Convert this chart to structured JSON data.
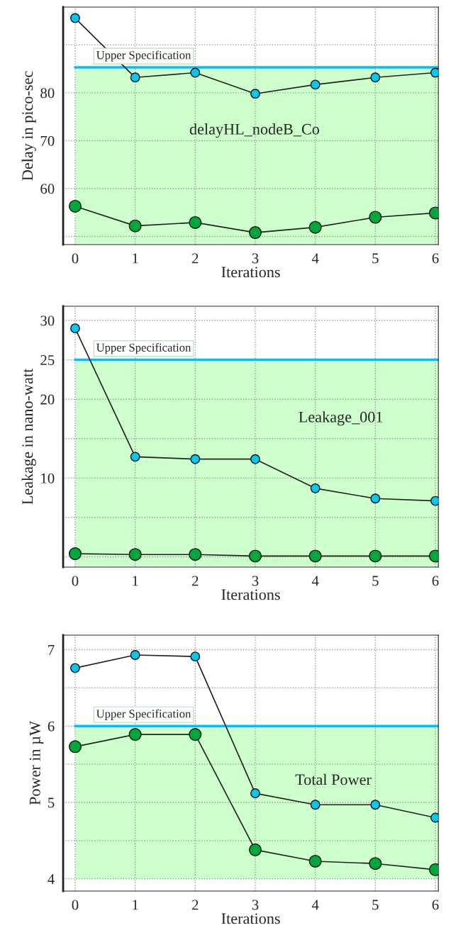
{
  "chart_data": [
    {
      "type": "line",
      "xlabel": "Iterations",
      "ylabel": "Delay in pico-sec",
      "annotations": [
        "delayHL_nodeB_Co"
      ],
      "x": [
        0,
        1,
        2,
        3,
        4,
        5,
        6
      ],
      "xlim": [
        -0.2,
        6.05
      ],
      "xticks": [
        0,
        1,
        2,
        3,
        4,
        5,
        6
      ],
      "ylim": [
        48.3,
        97.9
      ],
      "yticks": [
        {
          "value": 50,
          "label": null
        },
        60,
        70,
        80,
        {
          "value": 90,
          "label": null
        }
      ],
      "grid": true,
      "marker": "circle",
      "line_style": "solid",
      "series": [
        {
          "color": "#00c8f0",
          "values": [
            95.6,
            83.2,
            84.2,
            79.8,
            81.7,
            83.2,
            84.2
          ]
        },
        {
          "color": "#00a83c",
          "values": [
            56.3,
            52.2,
            52.9,
            50.8,
            51.9,
            54.0,
            54.9
          ]
        }
      ],
      "ref_lines": [
        {
          "axis": "y",
          "value": 85.3,
          "label": "Upper Specification",
          "color": "#00bfff"
        }
      ],
      "bands": [
        {
          "axis": "y",
          "from": 48.5,
          "to": 85.3,
          "color": "#ccffcc"
        }
      ]
    },
    {
      "type": "line",
      "xlabel": "Iterations",
      "ylabel": "Leakage in nano-watt",
      "annotations": [
        "Leakage_001"
      ],
      "x": [
        0,
        1,
        2,
        3,
        4,
        5,
        6
      ],
      "xlim": [
        -0.2,
        6.05
      ],
      "xticks": [
        0,
        1,
        2,
        3,
        4,
        5,
        6
      ],
      "ylim": [
        -1.3,
        31.8
      ],
      "yticks": [
        {
          "value": 0,
          "label": null
        },
        {
          "value": 5,
          "label": null
        },
        10,
        {
          "value": 15,
          "label": null
        },
        20,
        25,
        30
      ],
      "grid": true,
      "marker": "circle",
      "line_style": "solid",
      "series": [
        {
          "color": "#00c8f0",
          "values": [
            29.0,
            12.7,
            12.4,
            12.4,
            8.7,
            7.4,
            7.1
          ]
        },
        {
          "color": "#00a83c",
          "values": [
            0.4,
            0.3,
            0.3,
            0.1,
            0.1,
            0.1,
            0.1
          ]
        }
      ],
      "ref_lines": [
        {
          "axis": "y",
          "value": 25,
          "label": "Upper Specification",
          "color": "#00bfff"
        }
      ],
      "bands": [
        {
          "axis": "y",
          "from": -1.2,
          "to": 25,
          "color": "#ccffcc"
        }
      ]
    },
    {
      "type": "line",
      "xlabel": "Iterations",
      "ylabel": "Power in µW",
      "annotations": [
        "Total Power"
      ],
      "x": [
        0,
        1,
        2,
        3,
        4,
        5,
        6
      ],
      "xlim": [
        -0.2,
        6.05
      ],
      "xticks": [
        0,
        1,
        2,
        3,
        4,
        5,
        6
      ],
      "ylim": [
        3.84,
        7.19
      ],
      "yticks": [
        4,
        {
          "value": 4.5,
          "label": null
        },
        5,
        {
          "value": 5.5,
          "label": null
        },
        6,
        {
          "value": 6.5,
          "label": null
        },
        7
      ],
      "grid": true,
      "marker": "circle",
      "line_style": "solid",
      "series": [
        {
          "color": "#00c8f0",
          "values": [
            6.76,
            6.93,
            6.91,
            5.12,
            4.97,
            4.97,
            4.8
          ]
        },
        {
          "color": "#00a83c",
          "values": [
            5.73,
            5.89,
            5.89,
            4.38,
            4.23,
            4.2,
            4.12
          ]
        }
      ],
      "ref_lines": [
        {
          "axis": "y",
          "value": 6.0,
          "label": "Upper Specification",
          "color": "#00bfff"
        }
      ],
      "bands": [
        {
          "axis": "y",
          "from": 4.0,
          "to": 6.0,
          "color": "#ccffcc"
        }
      ]
    }
  ]
}
